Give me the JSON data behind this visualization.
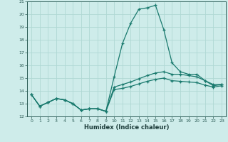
{
  "xlabel": "Humidex (Indice chaleur)",
  "bg_color": "#ceecea",
  "grid_color": "#b0d8d4",
  "line_color": "#1a7a6e",
  "xlim": [
    -0.5,
    23.5
  ],
  "ylim": [
    12,
    21
  ],
  "xticks": [
    0,
    1,
    2,
    3,
    4,
    5,
    6,
    7,
    8,
    9,
    10,
    11,
    12,
    13,
    14,
    15,
    16,
    17,
    18,
    19,
    20,
    21,
    22,
    23
  ],
  "yticks": [
    12,
    13,
    14,
    15,
    16,
    17,
    18,
    19,
    20,
    21
  ],
  "series": [
    [
      13.7,
      12.8,
      13.1,
      13.4,
      13.3,
      13.0,
      12.5,
      12.6,
      12.6,
      12.4,
      15.1,
      17.7,
      19.3,
      20.4,
      20.5,
      20.7,
      18.8,
      16.2,
      15.5,
      15.3,
      15.3,
      14.8,
      14.4,
      14.5
    ],
    [
      13.7,
      12.8,
      13.1,
      13.4,
      13.3,
      13.0,
      12.5,
      12.6,
      12.6,
      12.4,
      14.3,
      14.5,
      14.7,
      14.95,
      15.2,
      15.4,
      15.5,
      15.3,
      15.3,
      15.2,
      15.1,
      14.8,
      14.5,
      14.5
    ],
    [
      13.7,
      12.8,
      13.1,
      13.4,
      13.3,
      13.0,
      12.5,
      12.6,
      12.6,
      12.4,
      14.1,
      14.2,
      14.35,
      14.55,
      14.75,
      14.9,
      15.0,
      14.8,
      14.75,
      14.7,
      14.65,
      14.45,
      14.3,
      14.4
    ]
  ]
}
